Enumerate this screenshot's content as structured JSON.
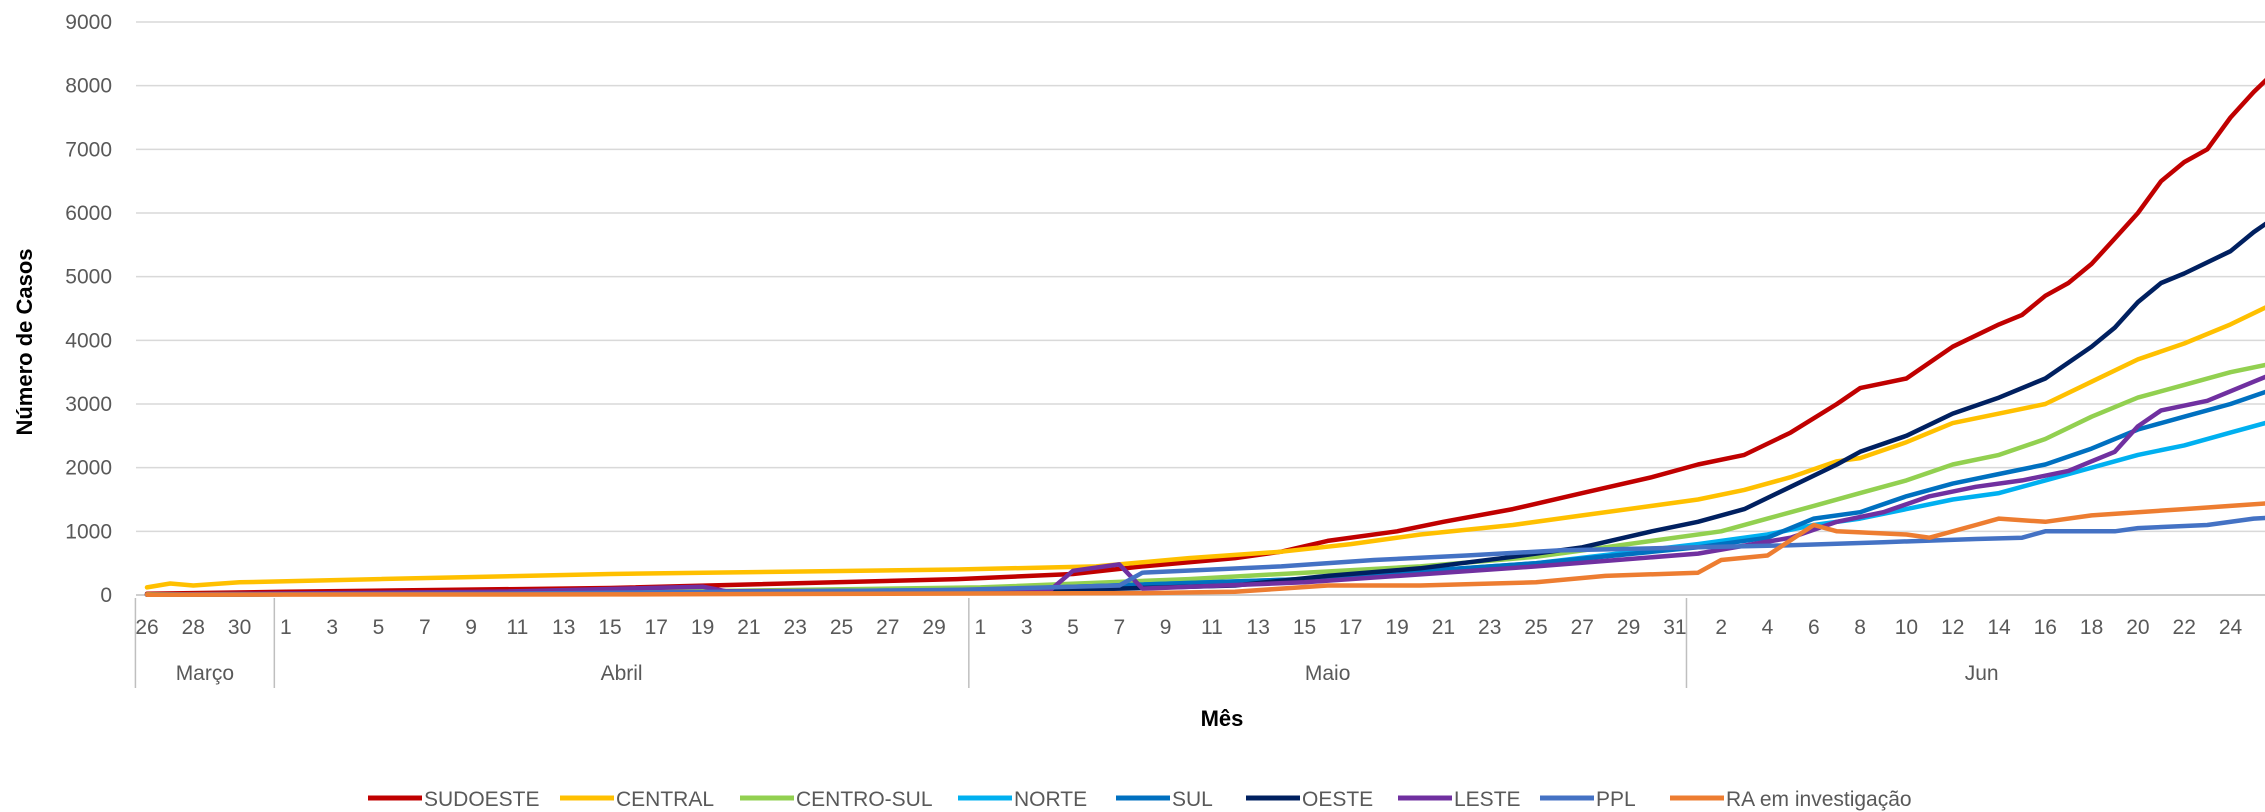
{
  "chart_data": {
    "type": "line",
    "title": "",
    "xlabel": "Mês",
    "ylabel": "Número de Casos",
    "ylim": [
      0,
      9000
    ],
    "yticks": [
      "0",
      "1000",
      "2000",
      "3000",
      "4000",
      "5000",
      "6000",
      "7000",
      "8000",
      "9000"
    ],
    "grid": true,
    "legend_position": "bottom",
    "x_tick_labels": [
      "26",
      "28",
      "30",
      "1",
      "3",
      "5",
      "7",
      "9",
      "11",
      "13",
      "15",
      "17",
      "19",
      "21",
      "23",
      "25",
      "27",
      "29",
      "1",
      "3",
      "5",
      "7",
      "9",
      "11",
      "13",
      "15",
      "17",
      "19",
      "21",
      "23",
      "25",
      "27",
      "29",
      "31",
      "2",
      "4",
      "6",
      "8",
      "10",
      "12",
      "14",
      "16",
      "18",
      "20",
      "22",
      "24"
    ],
    "months": [
      "Março",
      "Abril",
      "Maio",
      "Jun"
    ],
    "x_start": "2020-03-26",
    "x_end": "2020-06-25",
    "series": [
      {
        "name": "SUDOESTE",
        "color": "#C00000",
        "points": [
          [
            "2020-03-26",
            20
          ],
          [
            "2020-04-01",
            50
          ],
          [
            "2020-04-15",
            110
          ],
          [
            "2020-04-30",
            250
          ],
          [
            "2020-05-05",
            330
          ],
          [
            "2020-05-08",
            450
          ],
          [
            "2020-05-12",
            580
          ],
          [
            "2020-05-14",
            680
          ],
          [
            "2020-05-16",
            850
          ],
          [
            "2020-05-19",
            1000
          ],
          [
            "2020-05-21",
            1150
          ],
          [
            "2020-05-24",
            1350
          ],
          [
            "2020-05-27",
            1600
          ],
          [
            "2020-05-30",
            1850
          ],
          [
            "2020-06-01",
            2050
          ],
          [
            "2020-06-03",
            2200
          ],
          [
            "2020-06-05",
            2550
          ],
          [
            "2020-06-07",
            3000
          ],
          [
            "2020-06-08",
            3250
          ],
          [
            "2020-06-10",
            3400
          ],
          [
            "2020-06-12",
            3900
          ],
          [
            "2020-06-14",
            4250
          ],
          [
            "2020-06-15",
            4400
          ],
          [
            "2020-06-16",
            4700
          ],
          [
            "2020-06-17",
            4900
          ],
          [
            "2020-06-18",
            5200
          ],
          [
            "2020-06-19",
            5600
          ],
          [
            "2020-06-20",
            6000
          ],
          [
            "2020-06-21",
            6500
          ],
          [
            "2020-06-22",
            6800
          ],
          [
            "2020-06-23",
            7000
          ],
          [
            "2020-06-24",
            7500
          ],
          [
            "2020-06-25",
            7900
          ],
          [
            "2020-06-26",
            8250
          ]
        ]
      },
      {
        "name": "CENTRAL",
        "color": "#FFC000",
        "points": [
          [
            "2020-03-26",
            120
          ],
          [
            "2020-03-27",
            180
          ],
          [
            "2020-03-28",
            150
          ],
          [
            "2020-03-30",
            200
          ],
          [
            "2020-04-05",
            250
          ],
          [
            "2020-04-15",
            330
          ],
          [
            "2020-04-30",
            400
          ],
          [
            "2020-05-06",
            450
          ],
          [
            "2020-05-10",
            580
          ],
          [
            "2020-05-14",
            680
          ],
          [
            "2020-05-17",
            800
          ],
          [
            "2020-05-20",
            950
          ],
          [
            "2020-05-24",
            1100
          ],
          [
            "2020-05-27",
            1250
          ],
          [
            "2020-05-30",
            1400
          ],
          [
            "2020-06-01",
            1500
          ],
          [
            "2020-06-03",
            1650
          ],
          [
            "2020-06-05",
            1850
          ],
          [
            "2020-06-07",
            2100
          ],
          [
            "2020-06-08",
            2150
          ],
          [
            "2020-06-10",
            2400
          ],
          [
            "2020-06-12",
            2700
          ],
          [
            "2020-06-14",
            2850
          ],
          [
            "2020-06-16",
            3000
          ],
          [
            "2020-06-18",
            3350
          ],
          [
            "2020-06-20",
            3700
          ],
          [
            "2020-06-22",
            3950
          ],
          [
            "2020-06-24",
            4250
          ],
          [
            "2020-06-26",
            4600
          ]
        ]
      },
      {
        "name": "CENTRO-SUL",
        "color": "#92D050",
        "points": [
          [
            "2020-03-26",
            10
          ],
          [
            "2020-04-15",
            40
          ],
          [
            "2020-05-01",
            120
          ],
          [
            "2020-05-10",
            250
          ],
          [
            "2020-05-15",
            350
          ],
          [
            "2020-05-20",
            450
          ],
          [
            "2020-05-25",
            600
          ],
          [
            "2020-05-30",
            850
          ],
          [
            "2020-06-02",
            1000
          ],
          [
            "2020-06-04",
            1200
          ],
          [
            "2020-06-06",
            1400
          ],
          [
            "2020-06-08",
            1600
          ],
          [
            "2020-06-10",
            1800
          ],
          [
            "2020-06-12",
            2050
          ],
          [
            "2020-06-14",
            2200
          ],
          [
            "2020-06-16",
            2450
          ],
          [
            "2020-06-18",
            2800
          ],
          [
            "2020-06-20",
            3100
          ],
          [
            "2020-06-22",
            3300
          ],
          [
            "2020-06-24",
            3500
          ],
          [
            "2020-06-26",
            3650
          ]
        ]
      },
      {
        "name": "NORTE",
        "color": "#00B0F0",
        "points": [
          [
            "2020-03-26",
            5
          ],
          [
            "2020-04-15",
            30
          ],
          [
            "2020-05-01",
            80
          ],
          [
            "2020-05-15",
            250
          ],
          [
            "2020-05-25",
            500
          ],
          [
            "2020-06-01",
            800
          ],
          [
            "2020-06-04",
            950
          ],
          [
            "2020-06-06",
            1100
          ],
          [
            "2020-06-08",
            1200
          ],
          [
            "2020-06-10",
            1350
          ],
          [
            "2020-06-12",
            1500
          ],
          [
            "2020-06-14",
            1600
          ],
          [
            "2020-06-16",
            1800
          ],
          [
            "2020-06-18",
            2000
          ],
          [
            "2020-06-20",
            2200
          ],
          [
            "2020-06-22",
            2350
          ],
          [
            "2020-06-24",
            2550
          ],
          [
            "2020-06-26",
            2750
          ]
        ]
      },
      {
        "name": "SUL",
        "color": "#0070C0",
        "points": [
          [
            "2020-03-26",
            5
          ],
          [
            "2020-04-15",
            30
          ],
          [
            "2020-05-01",
            80
          ],
          [
            "2020-05-15",
            250
          ],
          [
            "2020-05-25",
            500
          ],
          [
            "2020-06-01",
            750
          ],
          [
            "2020-06-04",
            900
          ],
          [
            "2020-06-06",
            1200
          ],
          [
            "2020-06-08",
            1300
          ],
          [
            "2020-06-10",
            1550
          ],
          [
            "2020-06-12",
            1750
          ],
          [
            "2020-06-14",
            1900
          ],
          [
            "2020-06-16",
            2050
          ],
          [
            "2020-06-18",
            2300
          ],
          [
            "2020-06-20",
            2600
          ],
          [
            "2020-06-22",
            2800
          ],
          [
            "2020-06-24",
            3000
          ],
          [
            "2020-06-26",
            3250
          ]
        ]
      },
      {
        "name": "OESTE",
        "color": "#002060",
        "points": [
          [
            "2020-03-26",
            5
          ],
          [
            "2020-04-15",
            30
          ],
          [
            "2020-05-01",
            50
          ],
          [
            "2020-05-07",
            100
          ],
          [
            "2020-05-12",
            150
          ],
          [
            "2020-05-16",
            300
          ],
          [
            "2020-05-20",
            420
          ],
          [
            "2020-05-24",
            600
          ],
          [
            "2020-05-27",
            750
          ],
          [
            "2020-05-30",
            1000
          ],
          [
            "2020-06-01",
            1150
          ],
          [
            "2020-06-03",
            1350
          ],
          [
            "2020-06-05",
            1700
          ],
          [
            "2020-06-07",
            2050
          ],
          [
            "2020-06-08",
            2250
          ],
          [
            "2020-06-10",
            2500
          ],
          [
            "2020-06-12",
            2850
          ],
          [
            "2020-06-14",
            3100
          ],
          [
            "2020-06-16",
            3400
          ],
          [
            "2020-06-18",
            3900
          ],
          [
            "2020-06-19",
            4200
          ],
          [
            "2020-06-20",
            4600
          ],
          [
            "2020-06-21",
            4900
          ],
          [
            "2020-06-22",
            5050
          ],
          [
            "2020-06-24",
            5400
          ],
          [
            "2020-06-25",
            5700
          ],
          [
            "2020-06-26",
            5950
          ]
        ]
      },
      {
        "name": "LESTE",
        "color": "#7030A0",
        "points": [
          [
            "2020-03-26",
            5
          ],
          [
            "2020-04-10",
            50
          ],
          [
            "2020-04-19",
            130
          ],
          [
            "2020-04-20",
            60
          ],
          [
            "2020-05-04",
            70
          ],
          [
            "2020-05-05",
            380
          ],
          [
            "2020-05-07",
            480
          ],
          [
            "2020-05-08",
            100
          ],
          [
            "2020-05-15",
            200
          ],
          [
            "2020-05-25",
            450
          ],
          [
            "2020-06-01",
            650
          ],
          [
            "2020-06-05",
            900
          ],
          [
            "2020-06-07",
            1150
          ],
          [
            "2020-06-09",
            1300
          ],
          [
            "2020-06-11",
            1550
          ],
          [
            "2020-06-13",
            1700
          ],
          [
            "2020-06-15",
            1800
          ],
          [
            "2020-06-17",
            1950
          ],
          [
            "2020-06-18",
            2100
          ],
          [
            "2020-06-19",
            2250
          ],
          [
            "2020-06-20",
            2650
          ],
          [
            "2020-06-21",
            2900
          ],
          [
            "2020-06-23",
            3050
          ],
          [
            "2020-06-25",
            3350
          ],
          [
            "2020-06-26",
            3500
          ]
        ]
      },
      {
        "name": "PPL",
        "color": "#4472C4",
        "points": [
          [
            "2020-03-26",
            5
          ],
          [
            "2020-04-10",
            20
          ],
          [
            "2020-04-30",
            80
          ],
          [
            "2020-05-07",
            150
          ],
          [
            "2020-05-08",
            350
          ],
          [
            "2020-05-14",
            450
          ],
          [
            "2020-05-18",
            550
          ],
          [
            "2020-05-22",
            620
          ],
          [
            "2020-05-26",
            700
          ],
          [
            "2020-06-01",
            750
          ],
          [
            "2020-06-05",
            780
          ],
          [
            "2020-06-09",
            830
          ],
          [
            "2020-06-13",
            880
          ],
          [
            "2020-06-15",
            900
          ],
          [
            "2020-06-16",
            1000
          ],
          [
            "2020-06-19",
            1000
          ],
          [
            "2020-06-20",
            1050
          ],
          [
            "2020-06-23",
            1100
          ],
          [
            "2020-06-25",
            1200
          ],
          [
            "2020-06-26",
            1220
          ]
        ]
      },
      {
        "name": "RA em investigação",
        "color": "#ED7D31",
        "points": [
          [
            "2020-03-26",
            5
          ],
          [
            "2020-04-15",
            10
          ],
          [
            "2020-05-08",
            30
          ],
          [
            "2020-05-12",
            50
          ],
          [
            "2020-05-14",
            100
          ],
          [
            "2020-05-16",
            150
          ],
          [
            "2020-05-20",
            150
          ],
          [
            "2020-05-25",
            200
          ],
          [
            "2020-05-28",
            300
          ],
          [
            "2020-06-01",
            350
          ],
          [
            "2020-06-02",
            550
          ],
          [
            "2020-06-04",
            620
          ],
          [
            "2020-06-06",
            1100
          ],
          [
            "2020-06-07",
            1000
          ],
          [
            "2020-06-10",
            950
          ],
          [
            "2020-06-11",
            900
          ],
          [
            "2020-06-13",
            1100
          ],
          [
            "2020-06-14",
            1200
          ],
          [
            "2020-06-16",
            1150
          ],
          [
            "2020-06-18",
            1250
          ],
          [
            "2020-06-20",
            1300
          ],
          [
            "2020-06-22",
            1350
          ],
          [
            "2020-06-24",
            1400
          ],
          [
            "2020-06-26",
            1450
          ]
        ]
      }
    ]
  }
}
